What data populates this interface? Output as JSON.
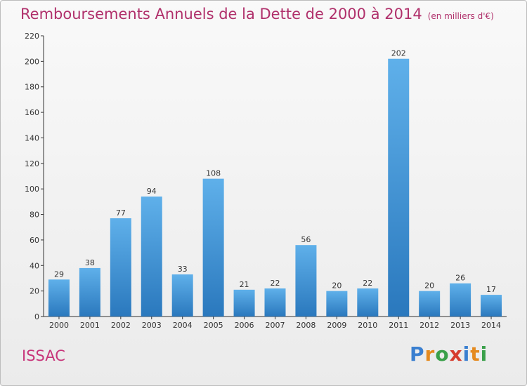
{
  "title": "Remboursements Annuels de la Dette de 2000 à 2014",
  "unit": "(en milliers d'€)",
  "commune": "ISSAC",
  "logo": {
    "text": "Proxiti",
    "letters": [
      "P",
      "r",
      "o",
      "x",
      "i",
      "t",
      "i"
    ],
    "colors": [
      "#3a7fd0",
      "#e58a1f",
      "#3aa04a",
      "#d63c2e",
      "#3a7fd0",
      "#e58a1f",
      "#3aa04a"
    ]
  },
  "colors": {
    "bar_top": "#5fb0ea",
    "bar_bottom": "#2a78bd",
    "title": "#b0306b",
    "axis": "#333333"
  },
  "chart_data": {
    "type": "bar",
    "categories": [
      "2000",
      "2001",
      "2002",
      "2003",
      "2004",
      "2005",
      "2006",
      "2007",
      "2008",
      "2009",
      "2010",
      "2011",
      "2012",
      "2013",
      "2014"
    ],
    "values": [
      29,
      38,
      77,
      94,
      33,
      108,
      21,
      22,
      56,
      20,
      22,
      202,
      20,
      26,
      17
    ],
    "ylim": [
      0,
      220
    ],
    "yticks": [
      0,
      20,
      40,
      60,
      80,
      100,
      120,
      140,
      160,
      180,
      200,
      220
    ],
    "grid": false,
    "data_labels": true
  }
}
